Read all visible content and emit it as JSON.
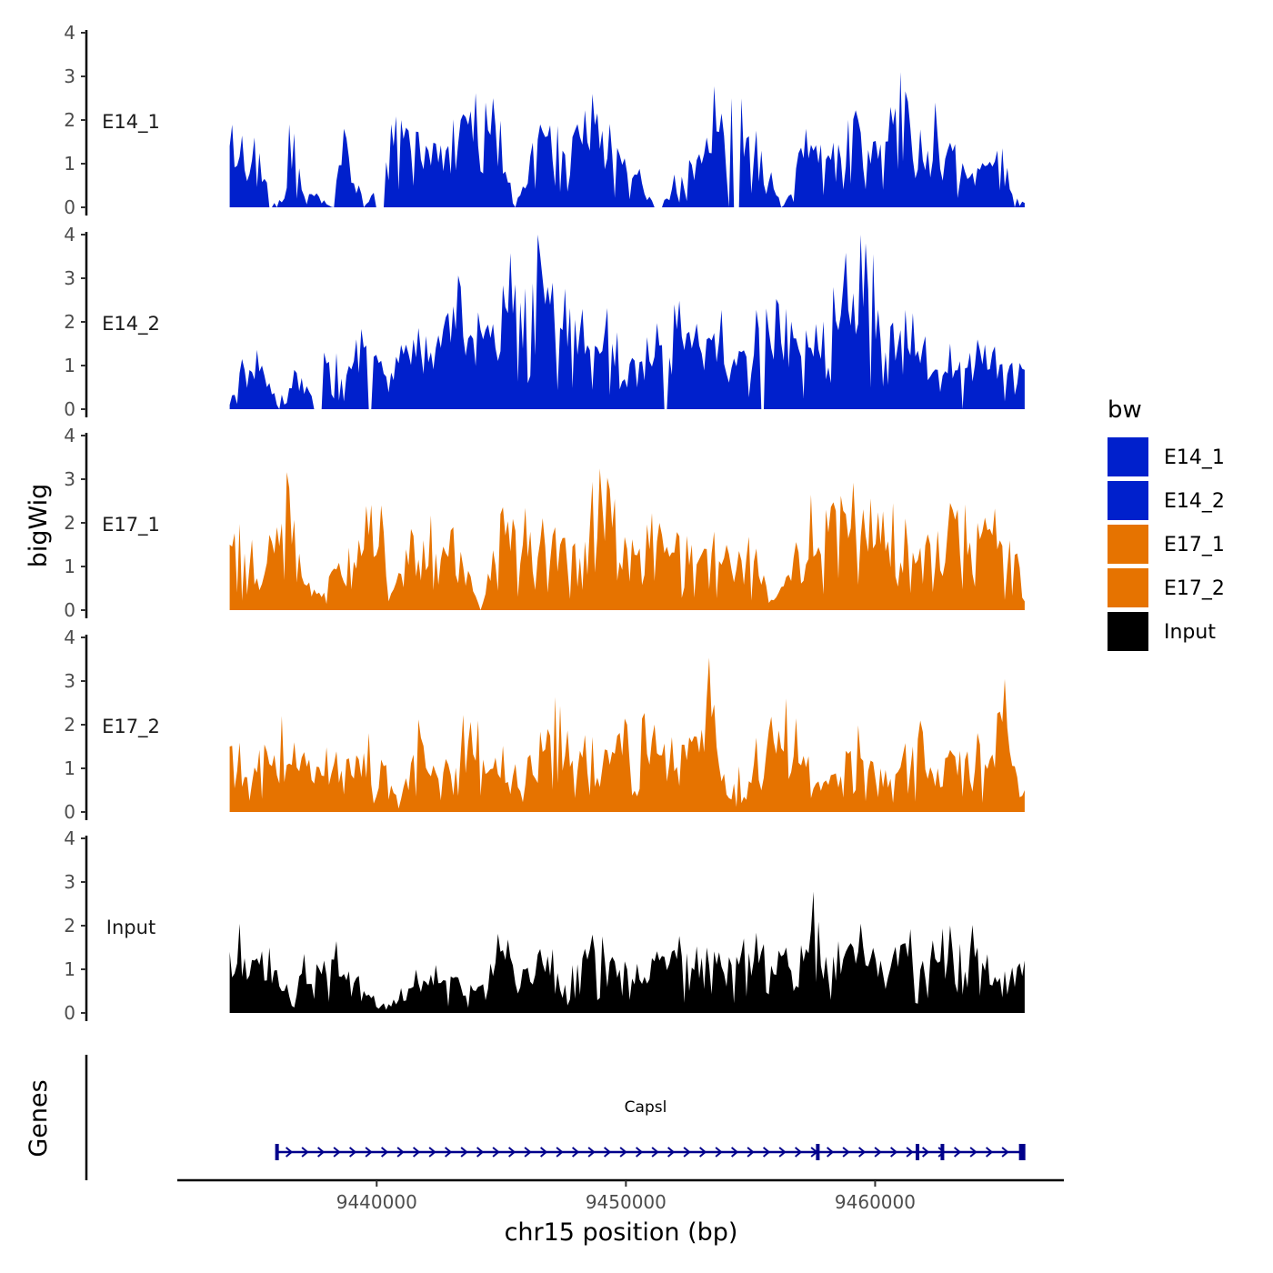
{
  "chart_data": {
    "type": "area",
    "ylabel": "bigWig",
    "xlabel": "chr15 position (bp)",
    "ylim": [
      0,
      4
    ],
    "y_ticks": [
      "0",
      "1",
      "2",
      "3",
      "4"
    ],
    "xlim": [
      9432000,
      9467500
    ],
    "x_ticks": [
      {
        "value": 9440000,
        "label": "9440000"
      },
      {
        "value": 9450000,
        "label": "9450000"
      },
      {
        "value": 9460000,
        "label": "9460000"
      }
    ],
    "series": [
      {
        "name": "E14_1",
        "color": "#0020CC",
        "x_start": 9434100,
        "x_end": 9466000,
        "anchors": [
          [
            0,
            1.4
          ],
          [
            0.03,
            1.6
          ],
          [
            0.055,
            0.1
          ],
          [
            0.06,
            0.0
          ],
          [
            0.075,
            1.9
          ],
          [
            0.09,
            0.4
          ],
          [
            0.13,
            0.0
          ],
          [
            0.145,
            1.8
          ],
          [
            0.17,
            0.0
          ],
          [
            0.205,
            1.4
          ],
          [
            0.215,
            2.0
          ],
          [
            0.25,
            1.3
          ],
          [
            0.29,
            2.0
          ],
          [
            0.33,
            2.5
          ],
          [
            0.36,
            0.0
          ],
          [
            0.39,
            1.9
          ],
          [
            0.42,
            1.3
          ],
          [
            0.455,
            2.6
          ],
          [
            0.49,
            1.2
          ],
          [
            0.54,
            0.0
          ],
          [
            0.6,
            1.6
          ],
          [
            0.63,
            2.5
          ],
          [
            0.67,
            1.3
          ],
          [
            0.695,
            0.0
          ],
          [
            0.705,
            0.3
          ],
          [
            0.725,
            1.8
          ],
          [
            0.75,
            1.1
          ],
          [
            0.79,
            2.0
          ],
          [
            0.81,
            1.5
          ],
          [
            0.83,
            2.3
          ],
          [
            0.845,
            3.1
          ],
          [
            0.86,
            1.1
          ],
          [
            0.89,
            1.6
          ],
          [
            0.93,
            0.7
          ],
          [
            0.965,
            1.3
          ],
          [
            0.985,
            0.3
          ],
          [
            1,
            0.1
          ]
        ],
        "gaps": [
          [
            0.047,
            0.058
          ],
          [
            0.183,
            0.196
          ],
          [
            0.534,
            0.545
          ],
          [
            0.626,
            0.641
          ],
          [
            0.985,
            0.99
          ]
        ]
      },
      {
        "name": "E14_2",
        "color": "#0020CC",
        "x_start": 9434100,
        "x_end": 9466000,
        "anchors": [
          [
            0,
            0.1
          ],
          [
            0.02,
            0.9
          ],
          [
            0.04,
            1.0
          ],
          [
            0.05,
            0.6
          ],
          [
            0.06,
            0.1
          ],
          [
            0.08,
            0.9
          ],
          [
            0.1,
            0.4
          ],
          [
            0.12,
            1.3
          ],
          [
            0.14,
            0.7
          ],
          [
            0.16,
            1.6
          ],
          [
            0.18,
            1.2
          ],
          [
            0.21,
            1.2
          ],
          [
            0.23,
            1.6
          ],
          [
            0.26,
            1.4
          ],
          [
            0.29,
            2.8
          ],
          [
            0.32,
            1.6
          ],
          [
            0.35,
            2.2
          ],
          [
            0.4,
            2.8
          ],
          [
            0.44,
            1.8
          ],
          [
            0.48,
            1.5
          ],
          [
            0.52,
            1.1
          ],
          [
            0.56,
            2.4
          ],
          [
            0.6,
            1.6
          ],
          [
            0.65,
            1.2
          ],
          [
            0.7,
            2.3
          ],
          [
            0.73,
            1.4
          ],
          [
            0.76,
            2.8
          ],
          [
            0.8,
            3.8
          ],
          [
            0.82,
            1.6
          ],
          [
            0.86,
            2.2
          ],
          [
            0.89,
            0.9
          ],
          [
            0.92,
            1.1
          ],
          [
            0.94,
            1.6
          ],
          [
            0.96,
            1.3
          ],
          [
            0.98,
            1.0
          ],
          [
            1,
            0.9
          ]
        ],
        "gaps": [
          [
            0.057,
            0.064
          ],
          [
            0.106,
            0.118
          ],
          [
            0.175,
            0.184
          ],
          [
            0.546,
            0.552
          ],
          [
            0.666,
            0.672
          ],
          [
            0.917,
            0.922
          ]
        ]
      },
      {
        "name": "E17_1",
        "color": "#E67300",
        "x_start": 9434100,
        "x_end": 9466000,
        "anchors": [
          [
            0,
            1.5
          ],
          [
            0.02,
            1.3
          ],
          [
            0.04,
            0.6
          ],
          [
            0.06,
            1.9
          ],
          [
            0.075,
            2.8
          ],
          [
            0.095,
            0.6
          ],
          [
            0.12,
            0.4
          ],
          [
            0.14,
            0.8
          ],
          [
            0.17,
            1.4
          ],
          [
            0.19,
            2.4
          ],
          [
            0.2,
            0.2
          ],
          [
            0.23,
            1.7
          ],
          [
            0.26,
            1.3
          ],
          [
            0.28,
            1.9
          ],
          [
            0.3,
            0.9
          ],
          [
            0.315,
            0.0
          ],
          [
            0.34,
            2.2
          ],
          [
            0.37,
            1.5
          ],
          [
            0.41,
            1.9
          ],
          [
            0.44,
            1.2
          ],
          [
            0.47,
            2.4
          ],
          [
            0.5,
            1.4
          ],
          [
            0.54,
            2.0
          ],
          [
            0.58,
            1.5
          ],
          [
            0.61,
            1.8
          ],
          [
            0.65,
            1.2
          ],
          [
            0.69,
            0.4
          ],
          [
            0.71,
            1.2
          ],
          [
            0.75,
            2.3
          ],
          [
            0.8,
            1.7
          ],
          [
            0.82,
            1.5
          ],
          [
            0.85,
            2.1
          ],
          [
            0.88,
            1.5
          ],
          [
            0.9,
            1.1
          ],
          [
            0.91,
            2.3
          ],
          [
            0.94,
            2.0
          ],
          [
            0.97,
            1.6
          ],
          [
            0.99,
            1.3
          ],
          [
            1,
            0.2
          ]
        ],
        "gaps": []
      },
      {
        "name": "E17_2",
        "color": "#E67300",
        "x_start": 9434100,
        "x_end": 9466000,
        "anchors": [
          [
            0,
            1.5
          ],
          [
            0.02,
            0.8
          ],
          [
            0.035,
            0.9
          ],
          [
            0.05,
            1.1
          ],
          [
            0.065,
            2.2
          ],
          [
            0.08,
            1.6
          ],
          [
            0.1,
            1.2
          ],
          [
            0.13,
            1.1
          ],
          [
            0.16,
            1.3
          ],
          [
            0.19,
            1.2
          ],
          [
            0.215,
            0.3
          ],
          [
            0.24,
            1.7
          ],
          [
            0.26,
            0.9
          ],
          [
            0.3,
            1.6
          ],
          [
            0.32,
            1.2
          ],
          [
            0.36,
            1.1
          ],
          [
            0.4,
            1.9
          ],
          [
            0.44,
            1.4
          ],
          [
            0.47,
            1.0
          ],
          [
            0.5,
            2.0
          ],
          [
            0.54,
            1.3
          ],
          [
            0.58,
            1.6
          ],
          [
            0.6,
            2.6
          ],
          [
            0.625,
            0.4
          ],
          [
            0.66,
            1.1
          ],
          [
            0.7,
            2.6
          ],
          [
            0.74,
            0.7
          ],
          [
            0.78,
            1.4
          ],
          [
            0.82,
            1.0
          ],
          [
            0.86,
            1.5
          ],
          [
            0.89,
            1.0
          ],
          [
            0.92,
            1.4
          ],
          [
            0.95,
            1.1
          ],
          [
            0.97,
            2.3
          ],
          [
            0.99,
            0.8
          ],
          [
            1,
            0.5
          ]
        ],
        "gaps": []
      },
      {
        "name": "Input",
        "color": "#000000",
        "x_start": 9434100,
        "x_end": 9466000,
        "anchors": [
          [
            0,
            1.4
          ],
          [
            0.03,
            1.2
          ],
          [
            0.05,
            1.5
          ],
          [
            0.065,
            0.5
          ],
          [
            0.09,
            0.9
          ],
          [
            0.12,
            1.2
          ],
          [
            0.16,
            0.8
          ],
          [
            0.18,
            0.4
          ],
          [
            0.2,
            0.2
          ],
          [
            0.23,
            0.6
          ],
          [
            0.26,
            1.1
          ],
          [
            0.28,
            0.8
          ],
          [
            0.31,
            0.5
          ],
          [
            0.34,
            1.4
          ],
          [
            0.37,
            1.0
          ],
          [
            0.4,
            1.3
          ],
          [
            0.43,
            1.1
          ],
          [
            0.46,
            1.4
          ],
          [
            0.5,
            1.0
          ],
          [
            0.54,
            1.2
          ],
          [
            0.57,
            1.3
          ],
          [
            0.6,
            1.5
          ],
          [
            0.63,
            1.1
          ],
          [
            0.67,
            1.4
          ],
          [
            0.7,
            1.5
          ],
          [
            0.73,
            1.9
          ],
          [
            0.76,
            1.3
          ],
          [
            0.79,
            1.4
          ],
          [
            0.82,
            1.2
          ],
          [
            0.85,
            1.6
          ],
          [
            0.88,
            1.2
          ],
          [
            0.91,
            1.4
          ],
          [
            0.94,
            1.5
          ],
          [
            0.97,
            0.8
          ],
          [
            1,
            1.2
          ]
        ],
        "gaps": []
      }
    ],
    "legend": {
      "title": "bw",
      "position": "right",
      "entries": [
        {
          "label": "E14_1",
          "color": "#0020CC"
        },
        {
          "label": "E14_2",
          "color": "#0020CC"
        },
        {
          "label": "E17_1",
          "color": "#E67300"
        },
        {
          "label": "E17_2",
          "color": "#E67300"
        },
        {
          "label": "Input",
          "color": "#000000"
        }
      ]
    },
    "genes_track": {
      "title": "Genes",
      "gene_name": "Capsl",
      "color": "#00008B",
      "start": 9436000,
      "end": 9466000,
      "strand": "+",
      "exons": [
        9436000,
        9457700,
        9461700,
        9462700,
        9465900
      ]
    }
  }
}
